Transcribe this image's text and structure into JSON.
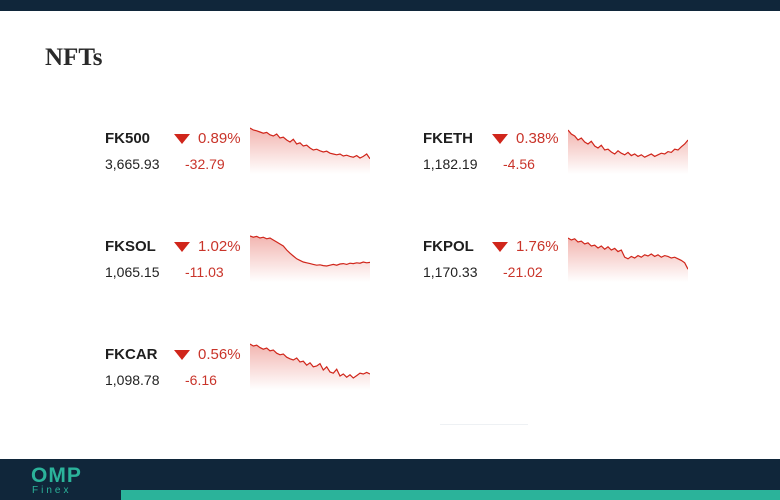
{
  "page": {
    "title": "NFTs"
  },
  "colors": {
    "down": "#d0261b",
    "down_text": "#c9342a",
    "header_bg": "#10263a",
    "brand": "#2bb39a"
  },
  "tickers": [
    {
      "symbol": "FK500",
      "pct": "0.89%",
      "price": "3,665.93",
      "change": "-32.79",
      "trend": "down",
      "spark": [
        0.05,
        0.1,
        0.12,
        0.15,
        0.18,
        0.16,
        0.22,
        0.25,
        0.2,
        0.3,
        0.28,
        0.35,
        0.4,
        0.33,
        0.45,
        0.42,
        0.5,
        0.48,
        0.55,
        0.6,
        0.58,
        0.62,
        0.65,
        0.63,
        0.68,
        0.7,
        0.72,
        0.7,
        0.75,
        0.73,
        0.76,
        0.78,
        0.74,
        0.8,
        0.76,
        0.7,
        0.82
      ]
    },
    {
      "symbol": "FKETH",
      "pct": "0.38%",
      "price": "1,182.19",
      "change": "-4.56",
      "trend": "down",
      "spark": [
        0.1,
        0.2,
        0.25,
        0.35,
        0.3,
        0.4,
        0.45,
        0.38,
        0.5,
        0.55,
        0.48,
        0.6,
        0.58,
        0.65,
        0.7,
        0.62,
        0.68,
        0.72,
        0.66,
        0.74,
        0.7,
        0.76,
        0.72,
        0.78,
        0.74,
        0.7,
        0.76,
        0.72,
        0.68,
        0.7,
        0.64,
        0.66,
        0.58,
        0.6,
        0.52,
        0.45,
        0.35
      ]
    },
    {
      "symbol": "FKSOL",
      "pct": "1.02%",
      "price": "1,065.15",
      "change": "-11.03",
      "trend": "down",
      "spark": [
        0.05,
        0.08,
        0.06,
        0.1,
        0.08,
        0.12,
        0.1,
        0.15,
        0.2,
        0.25,
        0.3,
        0.4,
        0.48,
        0.55,
        0.62,
        0.66,
        0.7,
        0.72,
        0.74,
        0.76,
        0.78,
        0.77,
        0.79,
        0.8,
        0.78,
        0.76,
        0.78,
        0.75,
        0.74,
        0.76,
        0.73,
        0.74,
        0.72,
        0.73,
        0.7,
        0.72,
        0.71
      ]
    },
    {
      "symbol": "FKPOL",
      "pct": "1.76%",
      "price": "1,170.33",
      "change": "-21.02",
      "trend": "down",
      "spark": [
        0.1,
        0.15,
        0.12,
        0.2,
        0.18,
        0.25,
        0.22,
        0.3,
        0.28,
        0.35,
        0.3,
        0.38,
        0.32,
        0.4,
        0.36,
        0.44,
        0.4,
        0.58,
        0.62,
        0.56,
        0.6,
        0.54,
        0.58,
        0.52,
        0.55,
        0.5,
        0.56,
        0.52,
        0.58,
        0.54,
        0.56,
        0.6,
        0.58,
        0.62,
        0.66,
        0.72,
        0.88
      ]
    },
    {
      "symbol": "FKCAR",
      "pct": "0.56%",
      "price": "1,098.78",
      "change": "-6.16",
      "trend": "down",
      "spark": [
        0.05,
        0.1,
        0.08,
        0.14,
        0.18,
        0.15,
        0.22,
        0.2,
        0.28,
        0.32,
        0.3,
        0.38,
        0.42,
        0.45,
        0.4,
        0.5,
        0.48,
        0.58,
        0.52,
        0.62,
        0.6,
        0.54,
        0.7,
        0.62,
        0.75,
        0.78,
        0.68,
        0.85,
        0.8,
        0.88,
        0.82,
        0.9,
        0.84,
        0.78,
        0.8,
        0.76,
        0.8
      ]
    }
  ],
  "footer": {
    "logo_main": "OMP",
    "logo_sub": "Finex"
  }
}
